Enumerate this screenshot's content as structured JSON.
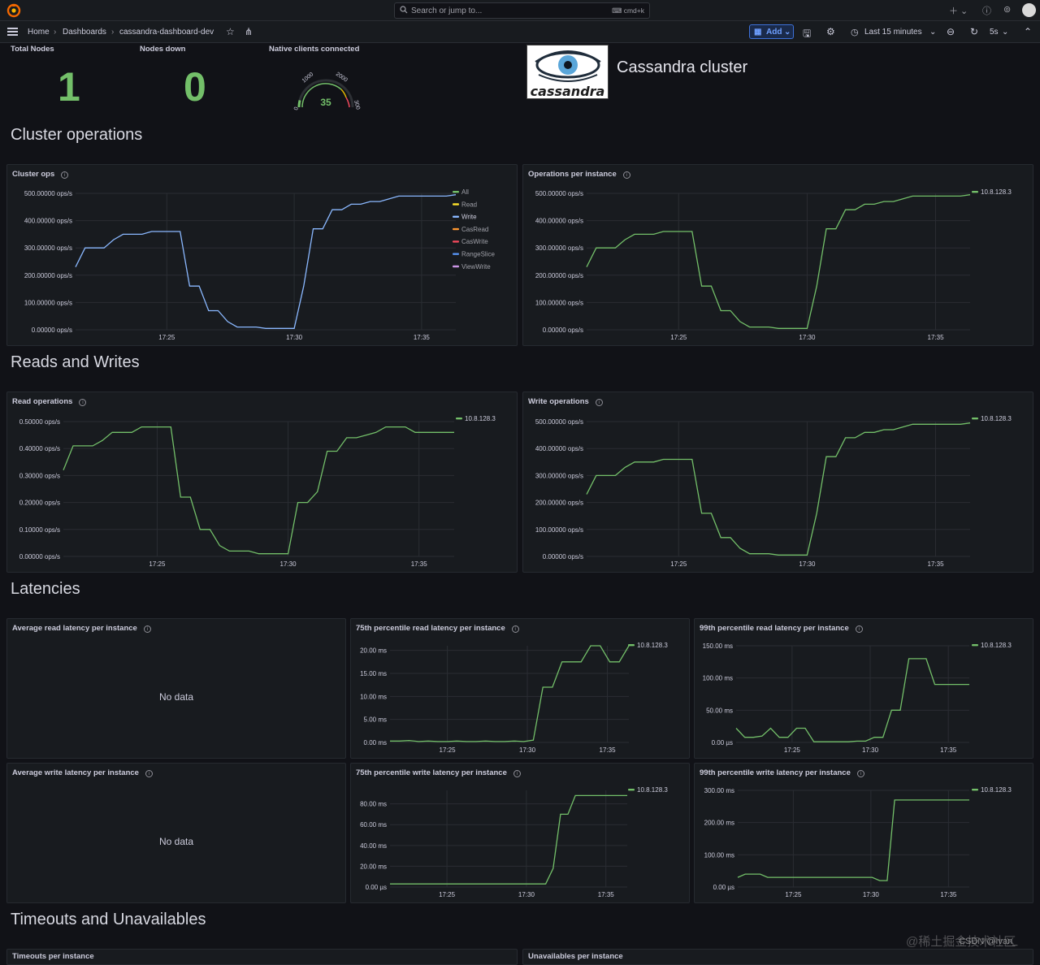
{
  "topbar": {
    "search_placeholder": "Search or jump to...",
    "search_shortcut": "cmd+k"
  },
  "breadcrumb": {
    "home": "Home",
    "dashboards": "Dashboards",
    "current": "cassandra-dashboard-dev"
  },
  "toolbar": {
    "add_label": "Add",
    "time_range": "Last 15 minutes",
    "refresh_interval": "5s"
  },
  "stats": {
    "total_nodes": {
      "title": "Total Nodes",
      "value": "1"
    },
    "nodes_down": {
      "title": "Nodes down",
      "value": "0"
    },
    "clients": {
      "title": "Native clients connected",
      "value": "35",
      "gauge_min": 0,
      "gauge_max": 3000,
      "gauge_ticks": [
        "0",
        "1000",
        "2000",
        "300"
      ]
    }
  },
  "logo": {
    "text": "cassandra"
  },
  "cluster_title": "Cassandra cluster",
  "rows": {
    "cluster_operations": "Cluster operations",
    "reads_writes": "Reads and Writes",
    "latencies": "Latencies",
    "timeouts": "Timeouts and Unavailables"
  },
  "panels": {
    "avg_read": {
      "title": "Average read latency per instance",
      "nodata": "No data"
    },
    "avg_write": {
      "title": "Average write latency per instance",
      "nodata": "No data"
    }
  },
  "bottom_cut": {
    "left": "Timeouts per instance",
    "right": "Unavailables per instance"
  },
  "watermark": "@稀土掘金技术社区",
  "watermark2": "CSDN @Ivan_",
  "colors": {
    "green": "#73bf69",
    "blue": "#8ab8ff",
    "yellow": "#fade2a",
    "orange": "#ff9830",
    "red": "#f2495c",
    "purple": "#ca95e5"
  },
  "chart_data": [
    {
      "id": "cluster_ops",
      "title": "Cluster ops",
      "type": "line",
      "x_ticks": [
        "17:25",
        "17:30",
        "17:35"
      ],
      "y_ticks": [
        "0.00000 ops/s",
        "100.00000 ops/s",
        "200.00000 ops/s",
        "300.00000 ops/s",
        "400.00000 ops/s",
        "500.00000 ops/s"
      ],
      "ylim": [
        0,
        500
      ],
      "legend": [
        {
          "name": "All",
          "color": "#73bf69"
        },
        {
          "name": "Read",
          "color": "#fade2a"
        },
        {
          "name": "Write",
          "color": "#8ab8ff"
        },
        {
          "name": "CasRead",
          "color": "#ff9830"
        },
        {
          "name": "CasWrite",
          "color": "#f2495c"
        },
        {
          "name": "RangeSlice",
          "color": "#5794f2"
        },
        {
          "name": "ViewWrite",
          "color": "#ca95e5"
        }
      ],
      "series": [
        {
          "name": "Write",
          "color": "#8ab8ff",
          "values": [
            230,
            300,
            300,
            300,
            330,
            350,
            350,
            350,
            360,
            360,
            360,
            360,
            160,
            160,
            70,
            70,
            30,
            10,
            10,
            10,
            5,
            5,
            5,
            5,
            160,
            370,
            370,
            440,
            440,
            460,
            460,
            470,
            470,
            480,
            490,
            490,
            490,
            490,
            490,
            490,
            495
          ]
        }
      ]
    },
    {
      "id": "ops_instance",
      "title": "Operations per instance",
      "type": "line",
      "x_ticks": [
        "17:25",
        "17:30",
        "17:35"
      ],
      "y_ticks": [
        "0.00000 ops/s",
        "100.00000 ops/s",
        "200.00000 ops/s",
        "300.00000 ops/s",
        "400.00000 ops/s",
        "500.00000 ops/s"
      ],
      "ylim": [
        0,
        500
      ],
      "legend": [
        {
          "name": "10.8.128.3",
          "color": "#73bf69"
        }
      ],
      "series": [
        {
          "name": "10.8.128.3",
          "color": "#73bf69",
          "values": [
            230,
            300,
            300,
            300,
            330,
            350,
            350,
            350,
            360,
            360,
            360,
            360,
            160,
            160,
            70,
            70,
            30,
            10,
            10,
            10,
            5,
            5,
            5,
            5,
            160,
            370,
            370,
            440,
            440,
            460,
            460,
            470,
            470,
            480,
            490,
            490,
            490,
            490,
            490,
            490,
            495
          ]
        }
      ]
    },
    {
      "id": "read_ops",
      "title": "Read operations",
      "type": "line",
      "x_ticks": [
        "17:25",
        "17:30",
        "17:35"
      ],
      "y_ticks": [
        "0.00000 ops/s",
        "0.10000 ops/s",
        "0.20000 ops/s",
        "0.30000 ops/s",
        "0.40000 ops/s",
        "0.50000 ops/s"
      ],
      "ylim": [
        0,
        0.5
      ],
      "legend": [
        {
          "name": "10.8.128.3",
          "color": "#73bf69"
        }
      ],
      "series": [
        {
          "name": "10.8.128.3",
          "color": "#73bf69",
          "values": [
            0.32,
            0.41,
            0.41,
            0.41,
            0.43,
            0.46,
            0.46,
            0.46,
            0.48,
            0.48,
            0.48,
            0.48,
            0.22,
            0.22,
            0.1,
            0.1,
            0.04,
            0.02,
            0.02,
            0.02,
            0.01,
            0.01,
            0.01,
            0.01,
            0.2,
            0.2,
            0.24,
            0.39,
            0.39,
            0.44,
            0.44,
            0.45,
            0.46,
            0.48,
            0.48,
            0.48,
            0.46,
            0.46,
            0.46,
            0.46,
            0.46
          ]
        }
      ]
    },
    {
      "id": "write_ops",
      "title": "Write operations",
      "type": "line",
      "x_ticks": [
        "17:25",
        "17:30",
        "17:35"
      ],
      "y_ticks": [
        "0.00000 ops/s",
        "100.00000 ops/s",
        "200.00000 ops/s",
        "300.00000 ops/s",
        "400.00000 ops/s",
        "500.00000 ops/s"
      ],
      "ylim": [
        0,
        500
      ],
      "legend": [
        {
          "name": "10.8.128.3",
          "color": "#73bf69"
        }
      ],
      "series": [
        {
          "name": "10.8.128.3",
          "color": "#73bf69",
          "values": [
            230,
            300,
            300,
            300,
            330,
            350,
            350,
            350,
            360,
            360,
            360,
            360,
            160,
            160,
            70,
            70,
            30,
            10,
            10,
            10,
            5,
            5,
            5,
            5,
            160,
            370,
            370,
            440,
            440,
            460,
            460,
            470,
            470,
            480,
            490,
            490,
            490,
            490,
            490,
            490,
            495
          ]
        }
      ]
    },
    {
      "id": "p75_read",
      "title": "75th percentile read latency per instance",
      "type": "line",
      "x_ticks": [
        "17:25",
        "17:30",
        "17:35"
      ],
      "y_ticks": [
        "0.00 ms",
        "5.00 ms",
        "10.00 ms",
        "15.00 ms",
        "20.00 ms"
      ],
      "ylim": [
        0,
        21
      ],
      "legend": [
        {
          "name": "10.8.128.3",
          "color": "#73bf69"
        }
      ],
      "series": [
        {
          "name": "10.8.128.3",
          "color": "#73bf69",
          "values": [
            0.3,
            0.3,
            0.4,
            0.2,
            0.3,
            0.2,
            0.2,
            0.3,
            0.2,
            0.2,
            0.3,
            0.2,
            0.2,
            0.3,
            0.2,
            0.5,
            12,
            12,
            17.5,
            17.5,
            17.5,
            21,
            21,
            17.5,
            17.5,
            21
          ]
        }
      ]
    },
    {
      "id": "p99_read",
      "title": "99th percentile read latency per instance",
      "type": "line",
      "x_ticks": [
        "17:25",
        "17:30",
        "17:35"
      ],
      "y_ticks": [
        "0.00 µs",
        "50.00 ms",
        "100.00 ms",
        "150.00 ms"
      ],
      "ylim": [
        0,
        150
      ],
      "legend": [
        {
          "name": "10.8.128.3",
          "color": "#73bf69"
        }
      ],
      "series": [
        {
          "name": "10.8.128.3",
          "color": "#73bf69",
          "values": [
            22,
            8,
            8,
            10,
            22,
            8,
            8,
            22,
            22,
            1,
            1,
            1,
            1,
            1,
            2,
            2,
            8,
            8,
            50,
            50,
            130,
            130,
            130,
            90,
            90,
            90,
            90,
            90
          ]
        }
      ]
    },
    {
      "id": "p75_write",
      "title": "75th percentile write latency per instance",
      "type": "line",
      "x_ticks": [
        "17:25",
        "17:30",
        "17:35"
      ],
      "y_ticks": [
        "0.00 µs",
        "20.00 ms",
        "40.00 ms",
        "60.00 ms",
        "80.00 ms"
      ],
      "ylim": [
        0,
        93
      ],
      "legend": [
        {
          "name": "10.8.128.3",
          "color": "#73bf69"
        }
      ],
      "series": [
        {
          "name": "10.8.128.3",
          "color": "#73bf69",
          "values": [
            3,
            3,
            3,
            3,
            3,
            3,
            3,
            3,
            3,
            3,
            3,
            3,
            3,
            3,
            3,
            3,
            3,
            3,
            3,
            3,
            3,
            3,
            18,
            70,
            70,
            88,
            88,
            88,
            88,
            88,
            88,
            88,
            88
          ]
        }
      ]
    },
    {
      "id": "p99_write",
      "title": "99th percentile write latency per instance",
      "type": "line",
      "x_ticks": [
        "17:25",
        "17:30",
        "17:35"
      ],
      "y_ticks": [
        "0.00 µs",
        "100.00 ms",
        "200.00 ms",
        "300.00 ms"
      ],
      "ylim": [
        0,
        300
      ],
      "legend": [
        {
          "name": "10.8.128.3",
          "color": "#73bf69"
        }
      ],
      "series": [
        {
          "name": "10.8.128.3",
          "color": "#73bf69",
          "values": [
            30,
            40,
            40,
            40,
            30,
            30,
            30,
            30,
            30,
            30,
            30,
            30,
            30,
            30,
            30,
            30,
            30,
            30,
            30,
            20,
            20,
            270,
            270,
            270,
            270,
            270,
            270,
            270,
            270,
            270,
            270,
            270
          ]
        }
      ]
    }
  ]
}
